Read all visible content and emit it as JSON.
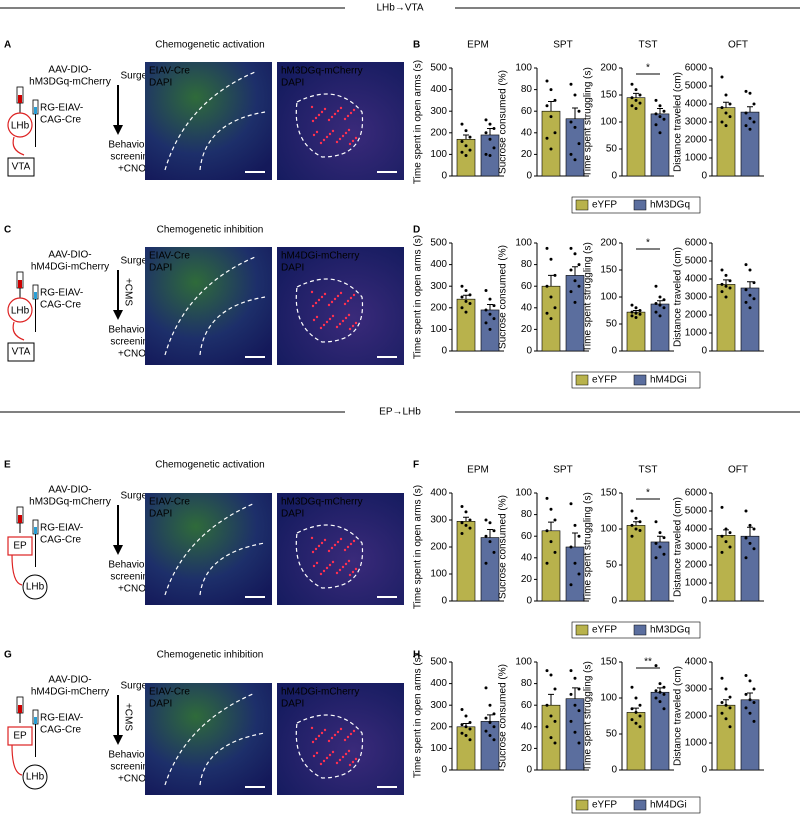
{
  "sections": [
    {
      "title": "LHb→VTA"
    },
    {
      "title": "EP→LHb"
    }
  ],
  "diagrams": [
    {
      "letter": "A",
      "title": "Chemogenetic activation",
      "vector": [
        "AAV-DIO-",
        "hM3DGq-mCherry"
      ],
      "helper": [
        "RG-EIAV-",
        "CAG-Cre"
      ],
      "regions": [
        "LHb",
        "VTA"
      ],
      "steps": [
        "Surgery",
        "Behavioral",
        "screening",
        "+CNO"
      ],
      "images": [
        [
          "EIAV-Cre",
          "DAPI"
        ],
        [
          "hM3DGq-mCherry",
          "DAPI"
        ]
      ]
    },
    {
      "letter": "C",
      "title": "Chemogenetic inhibition",
      "vector": [
        "AAV-DIO-",
        "hM4DGi-mCherry"
      ],
      "helper": [
        "RG-EIAV-",
        "CAG-Cre"
      ],
      "regions": [
        "LHb",
        "VTA"
      ],
      "steps": [
        "Surgery",
        "Behavioral",
        "screening",
        "+CNO"
      ],
      "treatment": "+CMS",
      "images": [
        [
          "EIAV-Cre",
          "DAPI"
        ],
        [
          "hM4DGi-mCherry",
          "DAPI"
        ]
      ]
    },
    {
      "letter": "E",
      "title": "Chemogenetic activation",
      "vector": [
        "AAV-DIO-",
        "hM3DGq-mCherry"
      ],
      "helper": [
        "RG-EIAV-",
        "CAG-Cre"
      ],
      "regions": [
        "EP",
        "LHb"
      ],
      "steps": [
        "Surgery",
        "Behavioral",
        "screening",
        "+CNO"
      ],
      "images": [
        [
          "EIAV-Cre",
          "DAPI"
        ],
        [
          "hM3DGq-mCherry",
          "DAPI"
        ]
      ]
    },
    {
      "letter": "G",
      "title": "Chemogenetic inhibition",
      "vector": [
        "AAV-DIO-",
        "hM4DGi-mCherry"
      ],
      "helper": [
        "RG-EIAV-",
        "CAG-Cre"
      ],
      "regions": [
        "EP",
        "LHb"
      ],
      "steps": [
        "Surgery",
        "Behavioral",
        "screening",
        "+CNO"
      ],
      "treatment": "+CMS",
      "images": [
        [
          "EIAV-Cre",
          "DAPI"
        ],
        [
          "hM4DGi-mCherry",
          "DAPI"
        ]
      ]
    }
  ],
  "chart_data": [
    {
      "type": "bar",
      "letter": "B",
      "series": [
        {
          "name": "eYFP",
          "color": "#b8b24c"
        },
        {
          "name": "hM3DGq",
          "color": "#5b6e9e"
        }
      ],
      "charts": [
        {
          "title": "EPM",
          "ylabel": "Time spent in open arms (s)",
          "ylim": [
            0,
            500
          ],
          "yticks": [
            0,
            100,
            200,
            300,
            400,
            500
          ],
          "values": [
            170,
            190
          ],
          "errors": [
            20,
            30
          ],
          "points": [
            [
              240,
              210,
              180,
              160,
              140,
              120,
              110,
              95
            ],
            [
              260,
              240,
              220,
              200,
              170,
              130,
              100,
              95
            ]
          ]
        },
        {
          "title": "SPT",
          "ylabel": "Sucrose consumed (%)",
          "ylim": [
            0,
            100
          ],
          "yticks": [
            0,
            20,
            40,
            60,
            80,
            100
          ],
          "values": [
            60,
            53
          ],
          "errors": [
            9,
            10
          ],
          "points": [
            [
              88,
              80,
              70,
              65,
              55,
              40,
              35,
              25
            ],
            [
              85,
              75,
              60,
              50,
              45,
              30,
              20,
              15
            ]
          ]
        },
        {
          "title": "TST",
          "ylabel": "Time spent struggling (s)",
          "ylim": [
            0,
            200
          ],
          "yticks": [
            0,
            50,
            100,
            150,
            200
          ],
          "values": [
            145,
            115
          ],
          "errors": [
            8,
            10
          ],
          "annotation": "*",
          "points": [
            [
              170,
              160,
              150,
              145,
              140,
              135,
              130,
              125
            ],
            [
              140,
              130,
              120,
              115,
              110,
              105,
              95,
              80
            ]
          ]
        },
        {
          "title": "OFT",
          "ylabel": "Distance traveled (cm)",
          "ylim": [
            0,
            6000
          ],
          "yticks": [
            0,
            1000,
            2000,
            3000,
            4000,
            5000,
            6000
          ],
          "values": [
            3800,
            3550
          ],
          "errors": [
            300,
            300
          ],
          "points": [
            [
              5500,
              4500,
              4000,
              3800,
              3500,
              3300,
              3000,
              2800
            ],
            [
              4700,
              4600,
              4000,
              3500,
              3200,
              3000,
              2800,
              2600
            ]
          ]
        }
      ]
    },
    {
      "type": "bar",
      "letter": "D",
      "series": [
        {
          "name": "eYFP",
          "color": "#b8b24c"
        },
        {
          "name": "hM4DGi",
          "color": "#5b6e9e"
        }
      ],
      "charts": [
        {
          "ylabel": "Time spent in open arms (s)",
          "ylim": [
            0,
            500
          ],
          "yticks": [
            0,
            100,
            200,
            300,
            400,
            500
          ],
          "values": [
            240,
            190
          ],
          "errors": [
            18,
            25
          ],
          "points": [
            [
              300,
              280,
              260,
              250,
              230,
              220,
              200,
              180
            ],
            [
              280,
              240,
              210,
              190,
              170,
              150,
              130,
              100
            ]
          ]
        },
        {
          "ylabel": "Sucrose consumed (%)",
          "ylim": [
            0,
            100
          ],
          "yticks": [
            0,
            20,
            40,
            60,
            80,
            100
          ],
          "values": [
            60,
            70
          ],
          "errors": [
            10,
            8
          ],
          "points": [
            [
              95,
              85,
              70,
              60,
              50,
              40,
              35,
              30
            ],
            [
              95,
              90,
              80,
              75,
              65,
              60,
              55,
              45
            ]
          ]
        },
        {
          "ylabel": "Time spent struggling (s)",
          "ylim": [
            0,
            200
          ],
          "yticks": [
            0,
            50,
            100,
            150,
            200
          ],
          "values": [
            72,
            87
          ],
          "errors": [
            3,
            6
          ],
          "annotation": "*",
          "points": [
            [
              85,
              80,
              75,
              72,
              70,
              68,
              65,
              62
            ],
            [
              120,
              100,
              95,
              88,
              85,
              80,
              72,
              65
            ]
          ]
        },
        {
          "ylabel": "Distance traveled (cm)",
          "ylim": [
            0,
            6000
          ],
          "yticks": [
            0,
            1000,
            2000,
            3000,
            4000,
            5000,
            6000
          ],
          "values": [
            3700,
            3500
          ],
          "errors": [
            250,
            350
          ],
          "points": [
            [
              4500,
              4200,
              3900,
              3700,
              3600,
              3500,
              3300,
              3000
            ],
            [
              4800,
              4500,
              3800,
              3400,
              3100,
              2900,
              2700,
              2400
            ]
          ]
        }
      ]
    },
    {
      "type": "bar",
      "letter": "F",
      "series": [
        {
          "name": "eYFP",
          "color": "#b8b24c"
        },
        {
          "name": "hM3DGq",
          "color": "#5b6e9e"
        }
      ],
      "charts": [
        {
          "title": "EPM",
          "ylabel": "Time spent in open arms (s)",
          "ylim": [
            0,
            400
          ],
          "yticks": [
            0,
            100,
            200,
            300,
            400
          ],
          "values": [
            295,
            235
          ],
          "errors": [
            15,
            30
          ],
          "points": [
            [
              350,
              330,
              300,
              290,
              280,
              270,
              250
            ],
            [
              300,
              290,
              260,
              240,
              220,
              180,
              140
            ]
          ]
        },
        {
          "title": "SPT",
          "ylabel": "Sucrose consumed (%)",
          "ylim": [
            0,
            100
          ],
          "yticks": [
            0,
            20,
            40,
            60,
            80,
            100
          ],
          "values": [
            65,
            50
          ],
          "errors": [
            8,
            13
          ],
          "points": [
            [
              95,
              85,
              75,
              65,
              55,
              45,
              35
            ],
            [
              90,
              70,
              60,
              50,
              35,
              25,
              15
            ]
          ]
        },
        {
          "title": "TST",
          "ylabel": "Time spent struggling (s)",
          "ylim": [
            0,
            150
          ],
          "yticks": [
            0,
            50,
            100,
            150
          ],
          "values": [
            105,
            82
          ],
          "errors": [
            5,
            8
          ],
          "annotation": "*",
          "points": [
            [
              125,
              115,
              110,
              105,
              100,
              98,
              90
            ],
            [
              110,
              95,
              88,
              80,
              75,
              65,
              60
            ]
          ]
        },
        {
          "title": "OFT",
          "ylabel": "Distance traveled (cm)",
          "ylim": [
            0,
            6000
          ],
          "yticks": [
            0,
            1000,
            2000,
            3000,
            4000,
            5000,
            6000
          ],
          "values": [
            3650,
            3600
          ],
          "errors": [
            300,
            500
          ],
          "points": [
            [
              5200,
              4000,
              3800,
              3600,
              3300,
              3000,
              2700
            ],
            [
              5000,
              4200,
              4000,
              3500,
              3200,
              2900,
              2400
            ]
          ]
        }
      ]
    },
    {
      "type": "bar",
      "letter": "H",
      "series": [
        {
          "name": "eYFP",
          "color": "#b8b24c"
        },
        {
          "name": "hM4DGi",
          "color": "#5b6e9e"
        }
      ],
      "charts": [
        {
          "ylabel": "Time spent in open arms (s)",
          "ylim": [
            0,
            500
          ],
          "yticks": [
            0,
            100,
            200,
            300,
            400,
            500
          ],
          "values": [
            200,
            225
          ],
          "errors": [
            15,
            30
          ],
          "points": [
            [
              280,
              250,
              220,
              210,
              200,
              190,
              170,
              160,
              140
            ],
            [
              380,
              300,
              260,
              240,
              220,
              200,
              180,
              160,
              140
            ]
          ]
        },
        {
          "ylabel": "Sucrose consumed (%)",
          "ylim": [
            0,
            100
          ],
          "yticks": [
            0,
            20,
            40,
            60,
            80,
            100
          ],
          "values": [
            60,
            66
          ],
          "errors": [
            10,
            10
          ],
          "points": [
            [
              92,
              88,
              75,
              60,
              50,
              45,
              40,
              30,
              25
            ],
            [
              92,
              85,
              75,
              70,
              60,
              55,
              45,
              35,
              25
            ]
          ]
        },
        {
          "ylabel": "Time spent struggling (s)",
          "ylim": [
            0,
            150
          ],
          "yticks": [
            0,
            50,
            100,
            150
          ],
          "values": [
            80,
            108
          ],
          "errors": [
            6,
            6
          ],
          "annotation": "**",
          "points": [
            [
              115,
              100,
              90,
              85,
              80,
              75,
              70,
              65,
              60
            ],
            [
              145,
              120,
              115,
              110,
              108,
              105,
              100,
              95,
              85
            ]
          ]
        },
        {
          "ylabel": "Distance traveled (cm)",
          "ylim": [
            0,
            4000
          ],
          "yticks": [
            0,
            1000,
            2000,
            3000,
            4000
          ],
          "values": [
            2400,
            2600
          ],
          "errors": [
            200,
            250
          ],
          "points": [
            [
              3400,
              3000,
              2700,
              2500,
              2400,
              2300,
              2100,
              1900,
              1600
            ],
            [
              3500,
              3300,
              3000,
              2800,
              2600,
              2500,
              2300,
              2100,
              1800
            ]
          ]
        }
      ]
    }
  ]
}
